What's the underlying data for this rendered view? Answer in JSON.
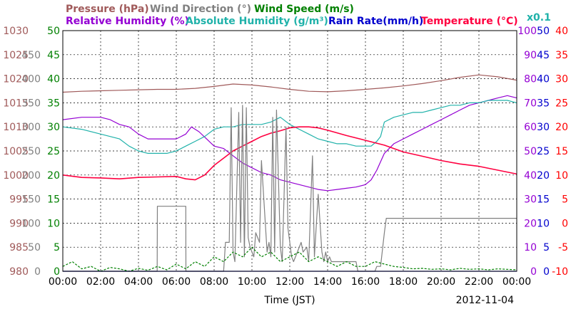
{
  "chart_data": {
    "type": "line",
    "xlabel": "Time (JST)",
    "date": "2012-11-04",
    "x_ticks": [
      "00:00",
      "02:00",
      "04:00",
      "06:00",
      "08:00",
      "10:00",
      "12:00",
      "14:00",
      "16:00",
      "18:00",
      "20:00",
      "22:00",
      "00:00"
    ],
    "xlim": [
      0,
      24
    ],
    "grid": true,
    "legend": [
      {
        "label": "Pressure (hPa)",
        "color": "#a05a5a"
      },
      {
        "label": "Wind Direction (°)",
        "color": "#808080"
      },
      {
        "label": "Wind Speed (m/s)",
        "color": "#008000"
      },
      {
        "label": "Relative Humidity (%)",
        "color": "#9400d3"
      },
      {
        "label": "Absolute Humidity (g/m³)",
        "color": "#20b2aa"
      },
      {
        "label": "Rain Rate(mm/h)",
        "color": "#0000cd"
      },
      {
        "label": "Temperature (°C)",
        "color": "#ff0040"
      }
    ],
    "scale_note": "x0.1",
    "axes": {
      "pressure": {
        "ticks": [
          "1030",
          "1025",
          "1020",
          "1015",
          "1010",
          "1005",
          "1000",
          "995",
          "990",
          "985",
          "980"
        ],
        "range": [
          980,
          1030
        ],
        "color": "#a05a5a"
      },
      "wind_direction": {
        "ticks": [
          "450",
          "400",
          "350",
          "300",
          "250",
          "200",
          "150",
          "100",
          "50",
          "0"
        ],
        "range": [
          0,
          500
        ],
        "color": "#808080"
      },
      "wind_speed": {
        "ticks": [
          "50",
          "45",
          "40",
          "35",
          "30",
          "25",
          "20",
          "15",
          "10",
          "5",
          "0"
        ],
        "range": [
          0,
          50
        ],
        "color": "#008000"
      },
      "humidity": {
        "ticks": [
          "100",
          "90",
          "80",
          "70",
          "60",
          "50",
          "40",
          "30",
          "20",
          "10",
          "0"
        ],
        "range": [
          0,
          100
        ],
        "color": "#9400d3"
      },
      "rain_rate": {
        "ticks": [
          "50",
          "45",
          "40",
          "35",
          "30",
          "25",
          "20",
          "15",
          "10",
          "5",
          "0"
        ],
        "range": [
          0,
          50
        ],
        "color": "#0000cd"
      },
      "temperature": {
        "ticks": [
          "40",
          "35",
          "30",
          "25",
          "20",
          "15",
          "10",
          "5",
          "0",
          "-5",
          "-10"
        ],
        "range": [
          -10,
          40
        ],
        "color": "#ff0000"
      }
    },
    "series": [
      {
        "name": "Pressure (hPa)",
        "axis": "pressure",
        "color": "#a05a5a",
        "x": [
          0,
          1,
          2,
          3,
          4,
          5,
          6,
          7,
          8,
          9,
          10,
          11,
          12,
          13,
          14,
          15,
          16,
          17,
          18,
          19,
          20,
          21,
          22,
          23,
          24
        ],
        "y": [
          1017.2,
          1017.4,
          1017.5,
          1017.6,
          1017.7,
          1017.8,
          1017.8,
          1018,
          1018.4,
          1018.9,
          1018.7,
          1018.3,
          1017.8,
          1017.4,
          1017.3,
          1017.5,
          1017.8,
          1018.1,
          1018.5,
          1019,
          1019.6,
          1020.3,
          1020.8,
          1020.4,
          1019.7
        ]
      },
      {
        "name": "Relative Humidity (%)",
        "axis": "humidity",
        "color": "#9400d3",
        "x": [
          0,
          1,
          2,
          2.5,
          3,
          3.5,
          4,
          4.5,
          5,
          5.5,
          6,
          6.5,
          6.8,
          7.2,
          7.6,
          8,
          8.5,
          9,
          9.5,
          10,
          10.5,
          11,
          11.5,
          12,
          12.5,
          13,
          13.5,
          14,
          14.5,
          15,
          15.5,
          16,
          16.3,
          16.6,
          17,
          17.5,
          18,
          18.5,
          19,
          19.5,
          20,
          20.5,
          21,
          21.5,
          22,
          22.5,
          23,
          23.5,
          24
        ],
        "y": [
          63,
          64,
          64,
          63,
          61,
          60,
          57,
          55,
          55,
          55,
          55,
          57,
          60,
          58,
          55,
          52,
          51,
          48,
          45,
          43,
          41,
          40,
          38,
          37,
          36,
          35,
          34,
          33.5,
          34,
          34.5,
          35,
          36,
          38,
          42,
          49,
          53,
          55,
          57,
          59,
          61,
          63,
          65,
          67,
          69,
          70,
          71,
          72,
          73,
          72
        ]
      },
      {
        "name": "Absolute Humidity (g/m³)",
        "axis": "wind_speed",
        "color": "#20b2aa",
        "x": [
          0,
          1,
          2,
          3,
          3.5,
          4,
          4.5,
          5,
          5.5,
          6,
          6.5,
          7,
          7.5,
          8,
          8.5,
          9,
          9.5,
          10,
          10.5,
          11,
          11.5,
          12,
          12.5,
          13,
          13.5,
          14,
          14.5,
          15,
          15.5,
          16,
          16.3,
          16.6,
          16.8,
          17,
          17.5,
          18,
          18.5,
          19,
          19.5,
          20,
          20.5,
          21,
          21.5,
          22,
          22.5,
          23,
          23.5,
          24
        ],
        "y": [
          30,
          29.5,
          28.5,
          27.5,
          26,
          25,
          24.5,
          24.5,
          24.5,
          25,
          26,
          27,
          28,
          29.5,
          30,
          30,
          30.5,
          30.5,
          30.5,
          31,
          32,
          30.5,
          29.5,
          28.5,
          27.5,
          27,
          26.5,
          26.5,
          26,
          26,
          26,
          27,
          28,
          31,
          32,
          32.5,
          33,
          33,
          33.5,
          34,
          34.5,
          34.5,
          35,
          35,
          35.5,
          35.5,
          35.5,
          35
        ]
      },
      {
        "name": "Temperature (°C)",
        "axis": "temperature",
        "color": "#ff0040",
        "x": [
          0,
          1,
          2,
          3,
          4,
          5,
          6,
          6.5,
          7,
          7.5,
          8,
          8.5,
          9,
          9.5,
          10,
          10.5,
          11,
          11.5,
          12,
          12.5,
          13,
          13.5,
          14,
          15,
          16,
          17,
          18,
          19,
          20,
          21,
          22,
          23,
          24
        ],
        "y": [
          10,
          9.5,
          9.4,
          9.2,
          9.5,
          9.6,
          9.7,
          9.2,
          9,
          10,
          12,
          13.5,
          15,
          16,
          17,
          18,
          18.7,
          19.2,
          19.8,
          20,
          20,
          19.8,
          19.3,
          18.2,
          17.2,
          16.2,
          14.8,
          13.9,
          13,
          12.3,
          11.8,
          11,
          10.2
        ]
      },
      {
        "name": "Wind Direction (°)",
        "axis": "wind_direction",
        "color": "#808080",
        "x": [
          0,
          4.99,
          5,
          6.5,
          6.51,
          7.8,
          7.81,
          8.5,
          8.6,
          8.8,
          8.9,
          9.0,
          9.1,
          9.3,
          9.4,
          9.5,
          9.6,
          9.7,
          9.8,
          9.9,
          10.0,
          10.1,
          10.2,
          10.4,
          10.5,
          10.8,
          10.9,
          11,
          11.1,
          11.2,
          11.3,
          11.5,
          11.6,
          11.8,
          11.9,
          12.1,
          12.2,
          12.4,
          12.6,
          12.7,
          12.9,
          13,
          13.2,
          13.3,
          13.5,
          13.7,
          13.8,
          13.9,
          14,
          14.1,
          14.2,
          15.5,
          15.6,
          16.5,
          16.6,
          16.8,
          17,
          17.1,
          18,
          22,
          24
        ],
        "y": [
          0,
          0,
          135,
          135,
          0,
          0,
          0,
          0,
          60,
          60,
          340,
          40,
          20,
          330,
          60,
          345,
          30,
          340,
          70,
          50,
          40,
          30,
          80,
          60,
          230,
          40,
          60,
          30,
          320,
          40,
          335,
          50,
          20,
          300,
          90,
          30,
          20,
          40,
          60,
          40,
          50,
          20,
          240,
          30,
          160,
          40,
          20,
          40,
          20,
          30,
          20,
          20,
          0,
          0,
          10,
          10,
          80,
          110,
          110,
          110,
          110
        ]
      },
      {
        "name": "Wind Speed (m/s)",
        "axis": "wind_speed",
        "color": "#008000",
        "x": [
          0,
          0.5,
          1,
          1.5,
          2,
          2.5,
          3,
          3.5,
          4,
          4.5,
          5,
          5.5,
          6,
          6.5,
          7,
          7.5,
          8,
          8.5,
          9,
          9.5,
          10,
          10.5,
          11,
          11.5,
          12,
          12.5,
          13,
          13.5,
          14,
          14.5,
          15,
          15.5,
          16,
          16.5,
          17,
          17.5,
          18,
          18.5,
          19,
          19.5,
          20,
          20.5,
          21,
          21.5,
          22,
          22.5,
          23,
          23.5,
          24
        ],
        "y": [
          1,
          2,
          0.5,
          1,
          0,
          0.8,
          0.5,
          0,
          0.6,
          0.2,
          1,
          0.3,
          1.5,
          0.5,
          2,
          1,
          3,
          2,
          4,
          3,
          5,
          3,
          4,
          2,
          3,
          4,
          2,
          3,
          2,
          1,
          2,
          1,
          1,
          2,
          1.5,
          1,
          0.8,
          0.5,
          0.6,
          0.4,
          0.5,
          0.3,
          0.6,
          0.4,
          0.5,
          0.3,
          0.5,
          0.4,
          0.3
        ]
      },
      {
        "name": "Rain Rate(mm/h)",
        "axis": "rain_rate",
        "color": "#0000cd",
        "x": [
          0,
          24
        ],
        "y": [
          0,
          0
        ]
      }
    ]
  }
}
